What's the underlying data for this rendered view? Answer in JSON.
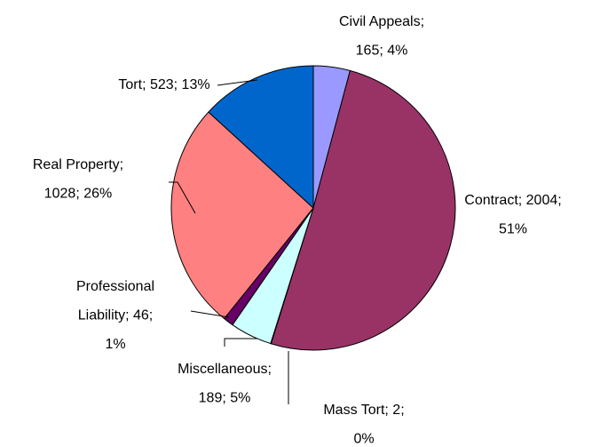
{
  "chart_data": {
    "type": "pie",
    "values": [
      165,
      2004,
      2,
      189,
      46,
      1028,
      523
    ],
    "value_labels": [
      "Civil Appeals; 165; 4%",
      "Contract; 2004; 51%",
      "Mass Tort; 2; 0%",
      "Miscellaneous; 189; 5%",
      "Professional Liability; 46; 1%",
      "Real Property; 1028; 26%",
      "Tort; 523; 13%"
    ],
    "colors": [
      "#9999ff",
      "#993366",
      "#ffffcc",
      "#ccffff",
      "#660066",
      "#ff8080",
      "#0066cc"
    ]
  }
}
